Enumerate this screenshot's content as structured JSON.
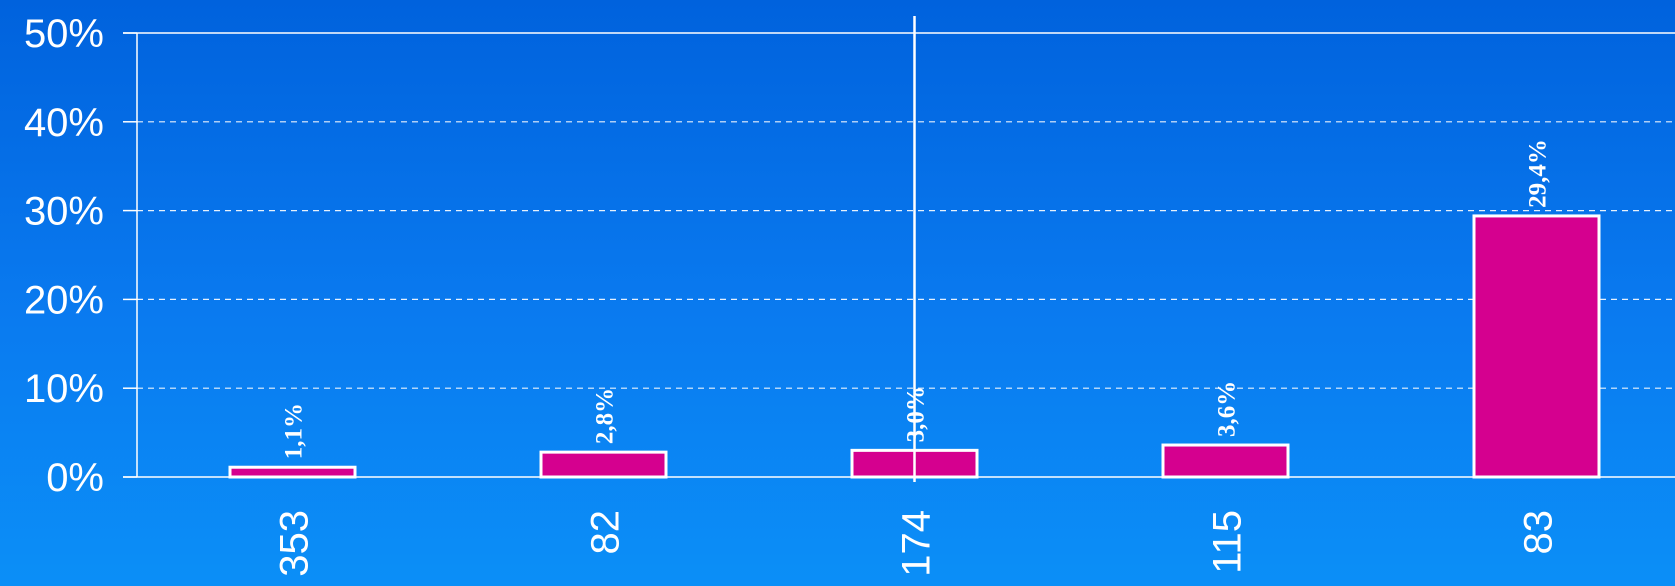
{
  "chart_data": {
    "type": "bar",
    "categories": [
      "353",
      "82",
      "174",
      "115",
      "83"
    ],
    "values": [
      1.1,
      2.8,
      3.0,
      3.6,
      29.4
    ],
    "data_labels": [
      "1,1%",
      "2,8%",
      "3,0%",
      "3,6%",
      "29,4%"
    ],
    "ylim": [
      0,
      50
    ],
    "y_ticks": [
      "0%",
      "10%",
      "20%",
      "30%",
      "40%",
      "50%"
    ],
    "grid": true,
    "reference_line_category": "174",
    "colors": {
      "bar_fill": "#d5008f",
      "bar_stroke": "#ffffff",
      "grid": "#ffffff",
      "text": "#ffffff"
    }
  }
}
